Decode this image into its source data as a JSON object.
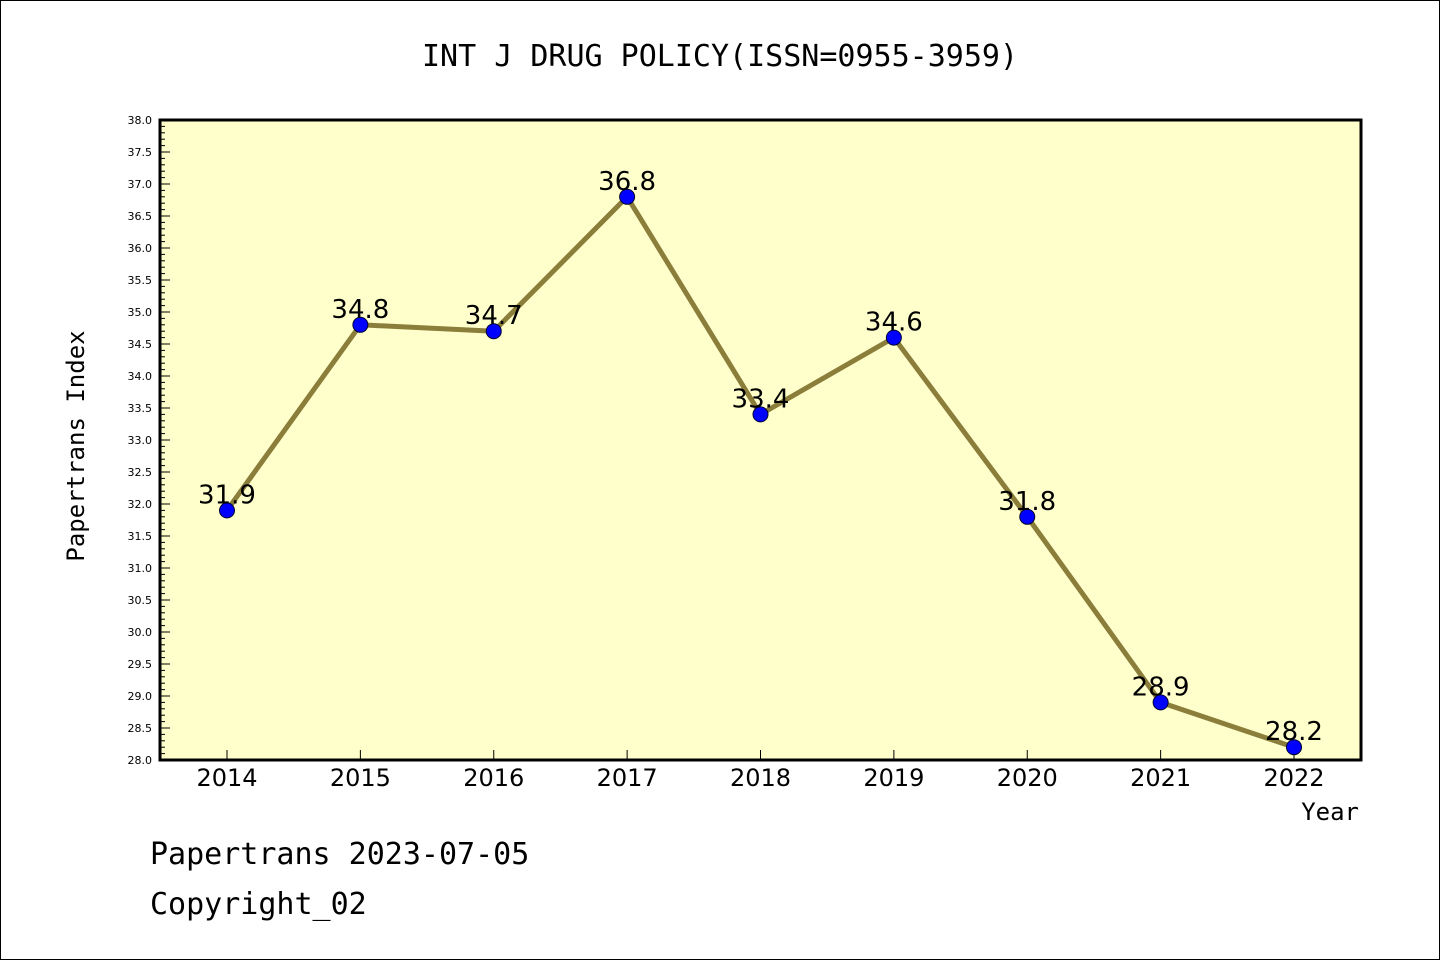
{
  "chart_data": {
    "type": "line",
    "title": "INT J DRUG POLICY(ISSN=0955-3959)",
    "xlabel": "Year",
    "ylabel": "Papertrans Index",
    "categories": [
      "2014",
      "2015",
      "2016",
      "2017",
      "2018",
      "2019",
      "2020",
      "2021",
      "2022"
    ],
    "values": [
      31.9,
      34.8,
      34.7,
      36.8,
      33.4,
      34.6,
      31.8,
      28.9,
      28.2
    ],
    "data_labels": [
      "31.9",
      "34.8",
      "34.7",
      "36.8",
      "33.4",
      "34.6",
      "31.8",
      "28.9",
      "28.2"
    ],
    "yticks": [
      "28.0",
      "28.5",
      "29.0",
      "29.5",
      "30.0",
      "30.5",
      "31.0",
      "31.5",
      "32.0",
      "32.5",
      "33.0",
      "33.5",
      "34.0",
      "34.5",
      "35.0",
      "35.5",
      "36.0",
      "36.5",
      "37.0",
      "37.5",
      "38.0"
    ],
    "ylim": [
      28.0,
      38.0
    ],
    "grid": false,
    "legend": "none",
    "colors": {
      "plot_background": "#ffffcc",
      "line": "#8b7d3a",
      "marker": "#0000ff"
    }
  },
  "footer": {
    "line1": "Papertrans 2023-07-05",
    "line2": "Copyright_02"
  }
}
